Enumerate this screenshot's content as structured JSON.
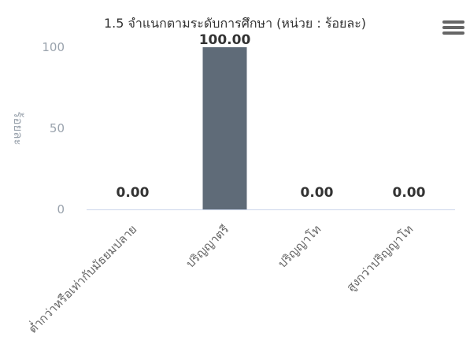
{
  "chart_data": {
    "type": "bar",
    "title": "1.5 จำแนกตามระดับการศึกษา (หน่วย : ร้อยละ)",
    "ylabel": "ร้อยละ",
    "xlabel": "",
    "categories": [
      "ต่ำกว่าหรือเท่ากับมัธยมปลาย",
      "ปริญญาตรี",
      "ปริญญาโท",
      "สูงกว่าปริญญาโท"
    ],
    "values": [
      0.0,
      100.0,
      0.0,
      0.0
    ],
    "data_labels": [
      "0.00",
      "100.00",
      "0.00",
      "0.00"
    ],
    "ylim": [
      0,
      100
    ],
    "yticks": [
      0,
      50,
      100
    ],
    "ytick_labels": [
      "0",
      "50",
      "100"
    ],
    "bar_color": "#5f6b78",
    "grid": false,
    "legend": "none"
  },
  "toolbar": {
    "menu_icon": "hamburger-menu-icon"
  }
}
